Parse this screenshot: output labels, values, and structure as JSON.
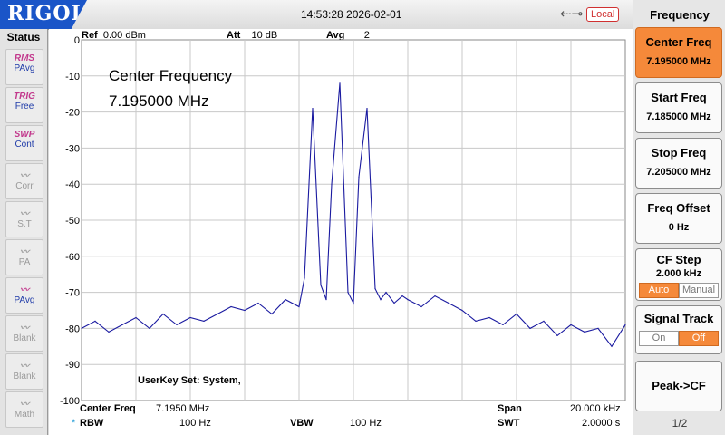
{
  "topbar": {
    "brand": "RIGOL",
    "datetime": "14:53:28 2026-02-01",
    "local_label": "Local"
  },
  "status": {
    "title": "Status",
    "items": [
      {
        "top": "RMS",
        "bottom": "PAvg",
        "active": true
      },
      {
        "top": "TRIG",
        "bottom": "Free",
        "active": true
      },
      {
        "top": "SWP",
        "bottom": "Cont",
        "active": true
      },
      {
        "top": "",
        "bottom": "Corr",
        "active": false
      },
      {
        "top": "",
        "bottom": "S.T",
        "active": false
      },
      {
        "top": "",
        "bottom": "PA",
        "active": false
      },
      {
        "top": "",
        "bottom": "PAvg",
        "active": true
      },
      {
        "top": "",
        "bottom": "Blank",
        "active": false
      },
      {
        "top": "",
        "bottom": "Blank",
        "active": false
      },
      {
        "top": "",
        "bottom": "Math",
        "active": false
      }
    ]
  },
  "measure": {
    "ref_label": "Ref",
    "ref_value": "0.00 dBm",
    "att_label": "Att",
    "att_value": "10 dB",
    "avg_label": "Avg",
    "avg_value": "2",
    "annotation_line1": "Center Frequency",
    "annotation_line2": "7.195000 MHz",
    "userkey": "UserKey Set:    System,",
    "center_label": "Center Freq",
    "center_value": "7.1950 MHz",
    "span_label": "Span",
    "span_value": "20.000 kHz",
    "rbw_label": "RBW",
    "rbw_value": "100 Hz",
    "vbw_label": "VBW",
    "vbw_value": "100 Hz",
    "swt_label": "SWT",
    "swt_value": "2.0000 s"
  },
  "chart_data": {
    "type": "line",
    "ylim": [
      -100,
      0
    ],
    "yticks": [
      "0",
      "-10",
      "-20",
      "-30",
      "-40",
      "-50",
      "-60",
      "-70",
      "-80",
      "-90",
      "-100"
    ],
    "xlim": [
      7.185,
      7.205
    ],
    "grid": true,
    "series": [
      {
        "color": "#1a1aa0",
        "x": [
          7.185,
          7.1855,
          7.186,
          7.1865,
          7.187,
          7.1875,
          7.188,
          7.1885,
          7.189,
          7.1895,
          7.19,
          7.1905,
          7.191,
          7.1915,
          7.192,
          7.1925,
          7.193,
          7.1932,
          7.1935,
          7.1938,
          7.194,
          7.1942,
          7.1945,
          7.1948,
          7.195,
          7.1952,
          7.1955,
          7.1958,
          7.196,
          7.1962,
          7.1965,
          7.1968,
          7.197,
          7.1975,
          7.198,
          7.1985,
          7.199,
          7.1995,
          7.2,
          7.2005,
          7.201,
          7.2015,
          7.202,
          7.2025,
          7.203,
          7.2035,
          7.204,
          7.2045,
          7.205
        ],
        "values": [
          -80,
          -78,
          -81,
          -79,
          -77,
          -80,
          -76,
          -79,
          -77,
          -78,
          -76,
          -74,
          -75,
          -73,
          -76,
          -72,
          -74,
          -66,
          -19,
          -68,
          -72,
          -40,
          -12,
          -70,
          -73,
          -38,
          -19,
          -69,
          -72,
          -70,
          -73,
          -71,
          -72,
          -74,
          -71,
          -73,
          -75,
          -78,
          -77,
          -79,
          -76,
          -80,
          -78,
          -82,
          -79,
          -81,
          -80,
          -85,
          -79
        ]
      }
    ]
  },
  "right_panel": {
    "title": "Frequency",
    "center": {
      "label": "Center Freq",
      "value": "7.195000 MHz"
    },
    "start": {
      "label": "Start Freq",
      "value": "7.185000 MHz"
    },
    "stop": {
      "label": "Stop Freq",
      "value": "7.205000 MHz"
    },
    "offset": {
      "label": "Freq Offset",
      "value": "0 Hz"
    },
    "cfstep": {
      "label": "CF Step",
      "value": "2.000 kHz",
      "opt_auto": "Auto",
      "opt_manual": "Manual"
    },
    "track": {
      "label": "Signal Track",
      "opt_on": "On",
      "opt_off": "Off"
    },
    "peak": {
      "label": "Peak->CF"
    },
    "page": "1/2"
  }
}
